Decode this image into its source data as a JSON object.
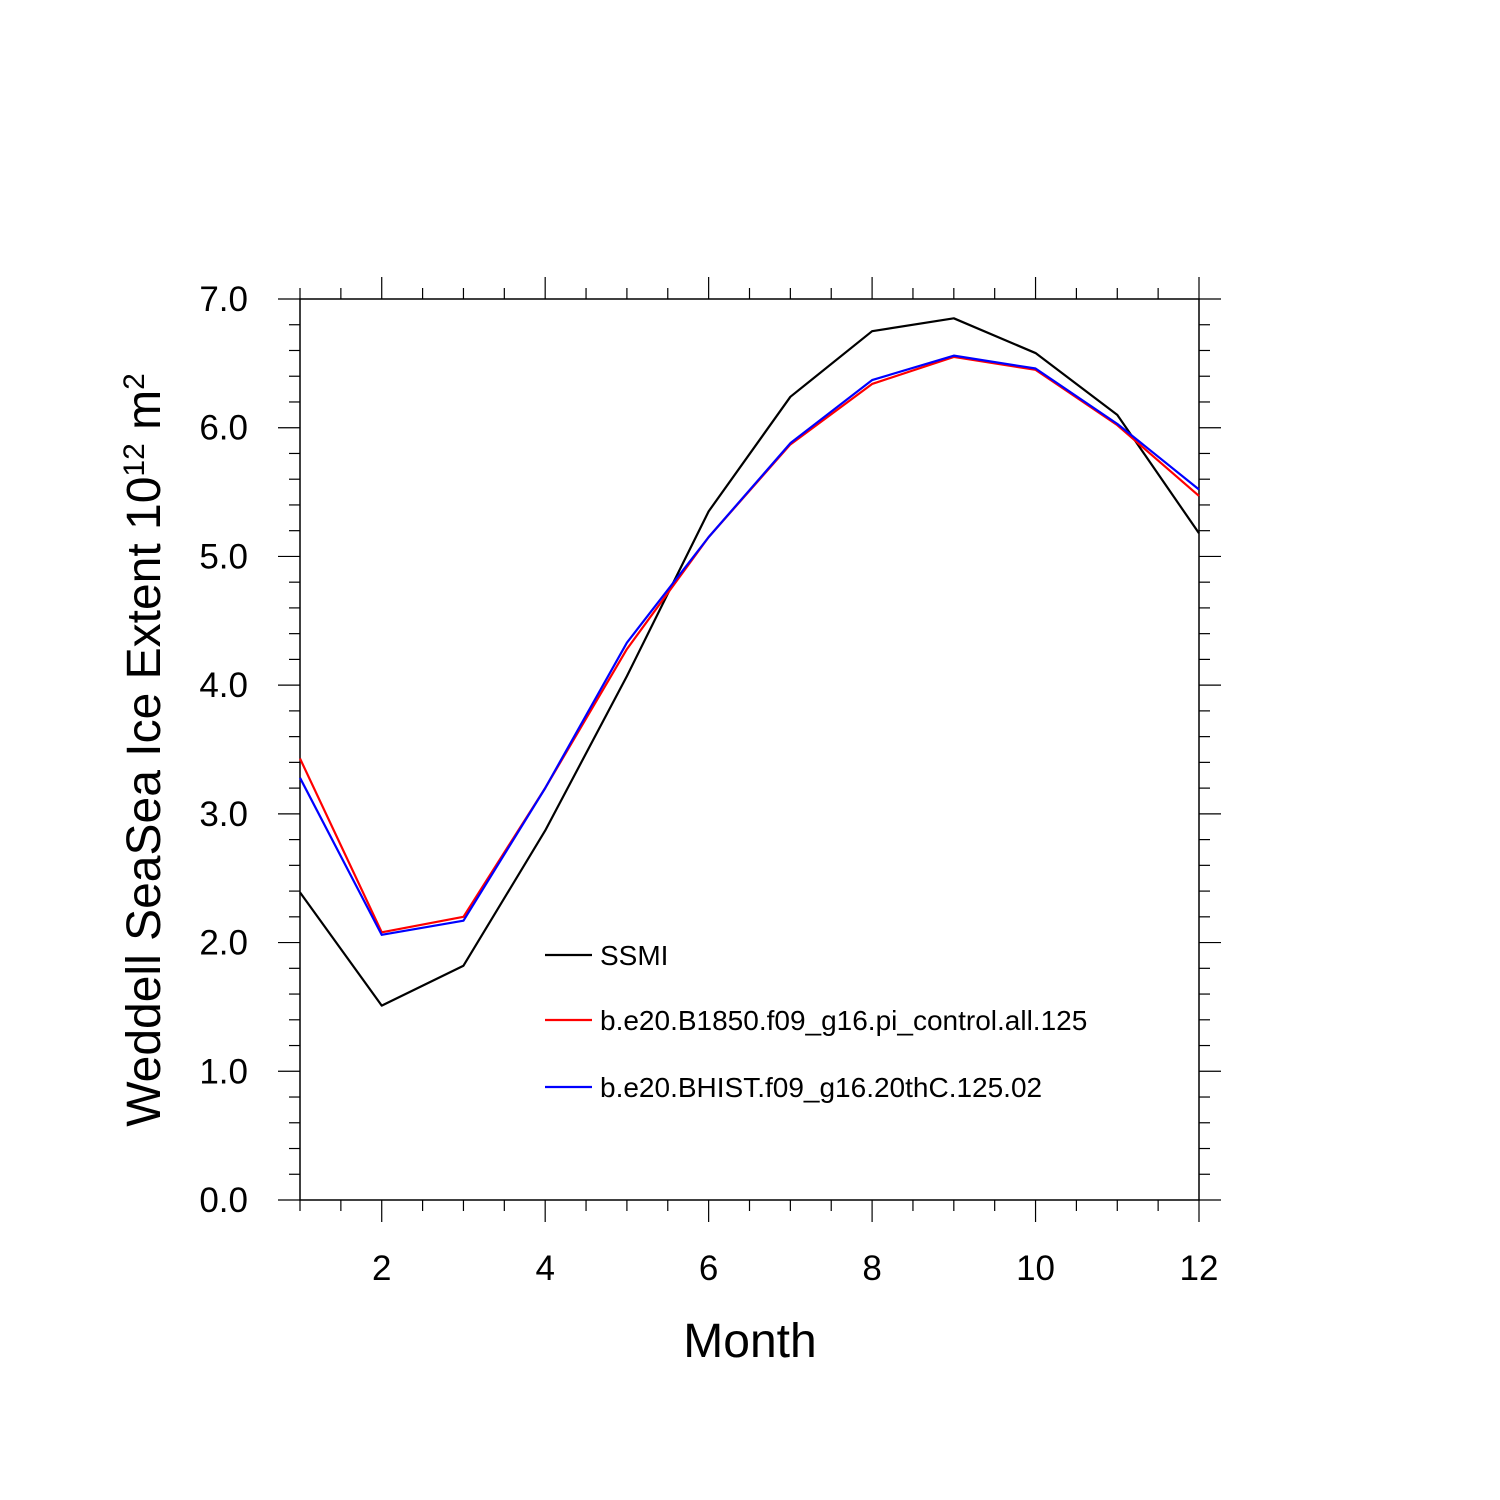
{
  "chart_data": {
    "type": "line",
    "xlabel": "Month",
    "ylabel": "Weddell SeaSea Ice Extent 10",
    "ylabel_sup": "12",
    "ylabel_unit": " m",
    "ylabel_unit_sup": "2",
    "xlim": [
      1,
      12
    ],
    "ylim": [
      0,
      7
    ],
    "xticks": [
      2,
      4,
      6,
      8,
      10,
      12
    ],
    "xtick_labels": [
      "2",
      "4",
      "6",
      "8",
      "10",
      "12"
    ],
    "yticks": [
      0,
      1,
      2,
      3,
      4,
      5,
      6,
      7
    ],
    "ytick_labels": [
      "0.0",
      "1.0",
      "2.0",
      "3.0",
      "4.0",
      "5.0",
      "6.0",
      "7.0"
    ],
    "grid": false,
    "legend_position": "lower-center",
    "x": [
      1,
      2,
      3,
      4,
      5,
      6,
      7,
      8,
      9,
      10,
      11,
      12
    ],
    "series": [
      {
        "name": "SSMI",
        "color": "#000000",
        "values": [
          2.39,
          1.51,
          1.82,
          2.87,
          4.07,
          5.35,
          6.24,
          6.75,
          6.85,
          6.58,
          6.1,
          5.18
        ]
      },
      {
        "name": "b.e20.B1850.f09_g16.pi_control.all.125",
        "color": "#ff0000",
        "values": [
          3.43,
          2.08,
          2.2,
          3.2,
          4.28,
          5.15,
          5.87,
          6.34,
          6.55,
          6.45,
          6.02,
          5.47
        ]
      },
      {
        "name": "b.e20.BHIST.f09_g16.20thC.125.02",
        "color": "#0000ff",
        "values": [
          3.28,
          2.06,
          2.17,
          3.2,
          4.33,
          5.15,
          5.88,
          6.37,
          6.56,
          6.46,
          6.03,
          5.52
        ]
      }
    ]
  }
}
